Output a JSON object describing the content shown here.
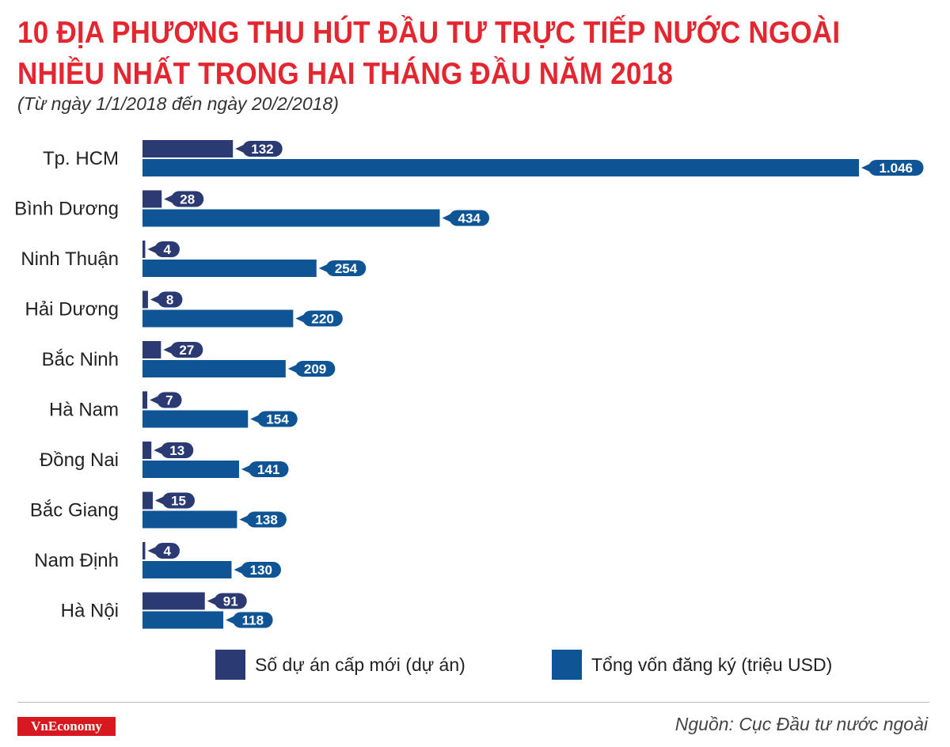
{
  "title_line1": "10 ĐỊA PHƯƠNG THU HÚT ĐẦU TƯ TRỰC TIẾP NƯỚC NGOÀI",
  "title_line2": "NHIỀU NHẤT TRONG HAI THÁNG ĐẦU NĂM 2018",
  "subtitle": "(Từ ngày 1/1/2018 đến ngày 20/2/2018)",
  "brand": "VnEconomy",
  "source": "Nguồn: Cục Đầu tư nước ngoài",
  "colors": {
    "title": "#e3262f",
    "projects": "#2b3a73",
    "capital": "#0f5595",
    "brand": "#d7191f"
  },
  "chart_data": {
    "type": "bar",
    "orientation": "horizontal",
    "categories": [
      "Tp. HCM",
      "Bình Dương",
      "Ninh Thuận",
      "Hải Dương",
      "Bắc Ninh",
      "Hà Nam",
      "Đồng Nai",
      "Bắc Giang",
      "Nam Định",
      "Hà Nội"
    ],
    "series": [
      {
        "name": "Số dự án cấp mới (dự án)",
        "values": [
          132,
          28,
          4,
          8,
          27,
          7,
          13,
          15,
          4,
          91
        ],
        "labels": [
          "132",
          "28",
          "4",
          "8",
          "27",
          "7",
          "13",
          "15",
          "4",
          "91"
        ],
        "color": "#2b3a73"
      },
      {
        "name": "Tổng vốn đăng ký (triệu USD)",
        "values": [
          1046,
          434,
          254,
          220,
          209,
          154,
          141,
          138,
          130,
          118
        ],
        "labels": [
          "1.046",
          "434",
          "254",
          "220",
          "209",
          "154",
          "141",
          "138",
          "130",
          "118"
        ],
        "color": "#0f5595"
      }
    ],
    "legend": "bottom",
    "grid": false
  }
}
